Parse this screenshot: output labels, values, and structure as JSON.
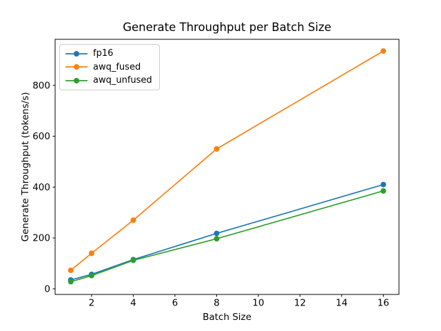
{
  "chart_data": {
    "type": "line",
    "title": "Generate Throughput per Batch Size",
    "xlabel": "Batch Size",
    "ylabel": "Generate Throughput (tokens/s)",
    "x": [
      1,
      2,
      4,
      8,
      16
    ],
    "series": [
      {
        "name": "fp16",
        "color": "#1f77b4",
        "values": [
          35,
          57,
          115,
          218,
          410
        ]
      },
      {
        "name": "awq_fused",
        "color": "#ff7f0e",
        "values": [
          73,
          140,
          270,
          550,
          935
        ]
      },
      {
        "name": "awq_unfused",
        "color": "#2ca02c",
        "values": [
          28,
          52,
          112,
          197,
          385
        ]
      }
    ],
    "xticks": [
      2,
      4,
      6,
      8,
      10,
      12,
      14,
      16
    ],
    "yticks": [
      0,
      200,
      400,
      600,
      800
    ],
    "xlim": [
      0.25,
      16.75
    ],
    "ylim": [
      -22,
      981
    ],
    "legend_position": "upper left",
    "grid": false,
    "marker": "o",
    "background_color": "#ffffff",
    "axis_color": "#000000"
  }
}
